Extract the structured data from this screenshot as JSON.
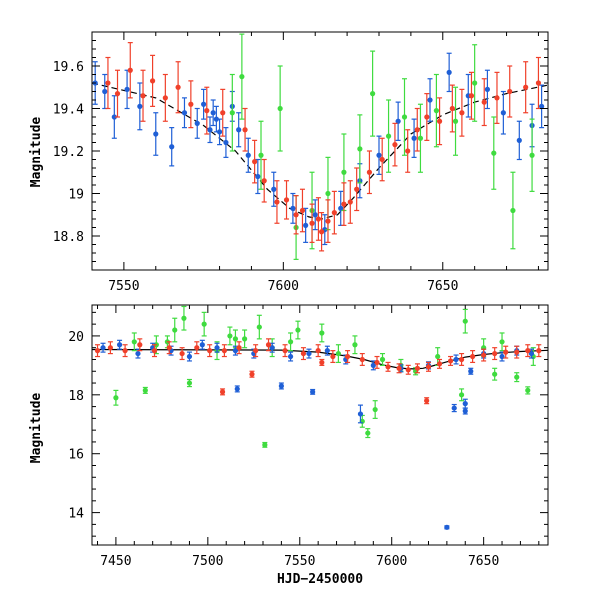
{
  "colors": {
    "blue": "#1f5fd6",
    "red": "#f0402a",
    "green": "#3fdb3f",
    "model": "#000000"
  },
  "chart_data": [
    {
      "type": "scatter",
      "panel": "top",
      "title": "",
      "xlabel": "",
      "ylabel": "Magnitude",
      "xlim": [
        7540,
        7683
      ],
      "ylim": [
        19.76,
        18.64
      ],
      "y_inverted": true,
      "xticks": [
        7550,
        7600,
        7650
      ],
      "xtick_labels": [
        "7550",
        "7600",
        "7650"
      ],
      "yticks": [
        18.8,
        19.0,
        19.2,
        19.4,
        19.6
      ],
      "ytick_labels": [
        "18.8",
        "19",
        "19.2",
        "19.4",
        "19.6"
      ],
      "grid": false,
      "legend": "none",
      "model_curve": {
        "style": "dashed",
        "x": [
          7540,
          7560,
          7575,
          7585,
          7595,
          7602,
          7608,
          7612,
          7617,
          7622,
          7630,
          7640,
          7650,
          7660,
          7670,
          7683
        ],
        "y": [
          19.52,
          19.45,
          19.32,
          19.2,
          19.02,
          18.93,
          18.89,
          18.88,
          18.9,
          18.98,
          19.12,
          19.28,
          19.37,
          19.43,
          19.47,
          19.51
        ]
      },
      "series": [
        {
          "name": "",
          "color": "blue",
          "x": [
            7541,
            7544,
            7547,
            7551,
            7555,
            7560,
            7565,
            7569,
            7573,
            7575,
            7577,
            7578,
            7579,
            7580,
            7582,
            7584,
            7586,
            7589,
            7592,
            7597,
            7603,
            7607,
            7610,
            7613,
            7618,
            7624,
            7630,
            7636,
            7641,
            7646,
            7652,
            7658,
            7664,
            7669,
            7674,
            7678,
            7681
          ],
          "y": [
            19.52,
            19.48,
            19.36,
            19.49,
            19.41,
            19.28,
            19.22,
            19.38,
            19.33,
            19.42,
            19.3,
            19.38,
            19.35,
            19.29,
            19.24,
            19.41,
            19.3,
            19.18,
            19.08,
            19.02,
            18.93,
            18.85,
            18.9,
            18.83,
            18.93,
            19.06,
            19.18,
            19.34,
            19.26,
            19.44,
            19.57,
            19.46,
            19.49,
            19.38,
            19.25,
            19.32,
            19.41
          ],
          "err": [
            0.1,
            0.08,
            0.1,
            0.09,
            0.11,
            0.1,
            0.09,
            0.07,
            0.07,
            0.07,
            0.06,
            0.06,
            0.06,
            0.06,
            0.07,
            0.07,
            0.08,
            0.08,
            0.08,
            0.08,
            0.07,
            0.08,
            0.07,
            0.07,
            0.08,
            0.08,
            0.09,
            0.09,
            0.09,
            0.1,
            0.09,
            0.1,
            0.09,
            0.1,
            0.09,
            0.1,
            0.1
          ]
        },
        {
          "name": "",
          "color": "green",
          "x": [
            7584,
            7587,
            7593,
            7599,
            7604,
            7609,
            7614,
            7619,
            7624,
            7628,
            7633,
            7638,
            7643,
            7648,
            7654,
            7660,
            7666,
            7672,
            7678
          ],
          "y": [
            19.38,
            19.55,
            19.18,
            19.4,
            18.84,
            18.92,
            19.0,
            19.1,
            19.21,
            19.47,
            19.27,
            19.36,
            19.26,
            19.39,
            19.34,
            19.52,
            19.19,
            18.92,
            19.18
          ],
          "err": [
            0.18,
            0.2,
            0.16,
            0.2,
            0.15,
            0.18,
            0.17,
            0.18,
            0.16,
            0.2,
            0.17,
            0.18,
            0.16,
            0.17,
            0.16,
            0.18,
            0.17,
            0.18,
            0.17
          ]
        },
        {
          "name": "",
          "color": "red",
          "x": [
            7545,
            7548,
            7552,
            7556,
            7559,
            7563,
            7567,
            7571,
            7576,
            7581,
            7588,
            7591,
            7594,
            7598,
            7601,
            7604,
            7606,
            7609,
            7611,
            7612,
            7614,
            7616,
            7619,
            7621,
            7623,
            7627,
            7631,
            7635,
            7639,
            7642,
            7645,
            7649,
            7653,
            7656,
            7659,
            7663,
            7667,
            7671,
            7676,
            7680
          ],
          "y": [
            19.52,
            19.47,
            19.58,
            19.46,
            19.53,
            19.45,
            19.5,
            19.42,
            19.39,
            19.38,
            19.3,
            19.15,
            19.06,
            18.96,
            18.97,
            18.9,
            18.92,
            18.86,
            18.88,
            18.82,
            18.87,
            18.91,
            18.95,
            18.96,
            19.02,
            19.1,
            19.16,
            19.23,
            19.2,
            19.3,
            19.36,
            19.34,
            19.4,
            19.38,
            19.46,
            19.43,
            19.45,
            19.48,
            19.5,
            19.52
          ],
          "err": [
            0.12,
            0.11,
            0.13,
            0.12,
            0.12,
            0.11,
            0.12,
            0.11,
            0.11,
            0.11,
            0.1,
            0.1,
            0.1,
            0.1,
            0.09,
            0.09,
            0.1,
            0.09,
            0.1,
            0.09,
            0.1,
            0.1,
            0.1,
            0.1,
            0.1,
            0.1,
            0.1,
            0.1,
            0.1,
            0.1,
            0.11,
            0.11,
            0.11,
            0.11,
            0.11,
            0.11,
            0.12,
            0.12,
            0.12,
            0.12
          ]
        }
      ]
    },
    {
      "type": "scatter",
      "panel": "bottom",
      "title": "",
      "xlabel": "HJD−2450000",
      "ylabel": "Magnitude",
      "xlim": [
        7437,
        7685
      ],
      "ylim": [
        21.05,
        12.9
      ],
      "y_inverted": true,
      "xticks": [
        7450,
        7500,
        7550,
        7600,
        7650
      ],
      "xtick_labels": [
        "7450",
        "7500",
        "7550",
        "7600",
        "7650"
      ],
      "yticks": [
        14,
        16,
        18,
        20
      ],
      "ytick_labels": [
        "14",
        "16",
        "18",
        "20"
      ],
      "grid": false,
      "legend": "none",
      "model_curve": {
        "style": "solid",
        "x": [
          7437,
          7540,
          7560,
          7575,
          7585,
          7595,
          7602,
          7608,
          7612,
          7617,
          7622,
          7630,
          7640,
          7650,
          7660,
          7670,
          7685
        ],
        "y": [
          19.54,
          19.52,
          19.45,
          19.32,
          19.2,
          19.02,
          18.93,
          18.89,
          18.88,
          18.9,
          18.98,
          19.12,
          19.28,
          19.37,
          19.43,
          19.47,
          19.51
        ]
      },
      "series": [
        {
          "name": "",
          "color": "green",
          "x": [
            7450,
            7466,
            7478,
            7490,
            7531,
            7584,
            7587,
            7591,
            7613,
            7638,
            7656,
            7668,
            7674,
            7460,
            7482,
            7498,
            7505,
            7512,
            7520,
            7528,
            7535,
            7545,
            7562,
            7571,
            7580,
            7595,
            7605,
            7625,
            7640,
            7650,
            7660,
            7677,
            7472,
            7487,
            7515,
            7549
          ],
          "y": [
            17.9,
            18.15,
            19.8,
            18.4,
            16.3,
            17.1,
            16.7,
            17.5,
            18.8,
            18.0,
            18.7,
            18.6,
            18.15,
            19.8,
            20.2,
            20.4,
            19.5,
            20.0,
            19.9,
            20.3,
            19.6,
            19.8,
            20.1,
            19.4,
            19.7,
            19.2,
            19.0,
            19.3,
            20.5,
            19.6,
            19.8,
            19.3,
            19.7,
            20.6,
            19.9,
            20.2
          ],
          "err": [
            0.25,
            0.1,
            0.2,
            0.12,
            0.08,
            0.2,
            0.15,
            0.3,
            0.12,
            0.2,
            0.2,
            0.15,
            0.12,
            0.3,
            0.4,
            0.4,
            0.3,
            0.3,
            0.3,
            0.4,
            0.3,
            0.3,
            0.3,
            0.3,
            0.3,
            0.2,
            0.2,
            0.3,
            0.4,
            0.3,
            0.3,
            0.3,
            0.3,
            0.4,
            0.3,
            0.3
          ]
        },
        {
          "name": "",
          "color": "blue",
          "x": [
            7630,
            7634,
            7640,
            7640,
            7583,
            7557,
            7516,
            7540,
            7643,
            7443,
            7452,
            7462,
            7470,
            7480,
            7490,
            7497,
            7505,
            7515,
            7525,
            7535,
            7545,
            7555,
            7565,
            7575,
            7590,
            7605,
            7620,
            7635,
            7650,
            7660,
            7668,
            7676
          ],
          "y": [
            13.5,
            17.55,
            17.45,
            17.7,
            17.35,
            18.1,
            18.2,
            18.3,
            18.8,
            19.6,
            19.7,
            19.4,
            19.6,
            19.5,
            19.3,
            19.7,
            19.6,
            19.5,
            19.4,
            19.6,
            19.3,
            19.4,
            19.5,
            19.2,
            19.0,
            18.9,
            19.0,
            19.2,
            19.4,
            19.3,
            19.5,
            19.4
          ],
          "err": [
            0.05,
            0.12,
            0.1,
            0.15,
            0.3,
            0.08,
            0.1,
            0.1,
            0.1,
            0.15,
            0.15,
            0.15,
            0.15,
            0.15,
            0.15,
            0.15,
            0.15,
            0.15,
            0.15,
            0.15,
            0.15,
            0.15,
            0.15,
            0.15,
            0.15,
            0.12,
            0.12,
            0.15,
            0.15,
            0.15,
            0.15,
            0.15
          ]
        },
        {
          "name": "",
          "color": "red",
          "x": [
            7508,
            7524,
            7619,
            7562,
            7440,
            7447,
            7455,
            7463,
            7471,
            7479,
            7486,
            7494,
            7501,
            7509,
            7517,
            7526,
            7533,
            7542,
            7552,
            7560,
            7568,
            7576,
            7584,
            7592,
            7598,
            7604,
            7609,
            7614,
            7620,
            7626,
            7632,
            7638,
            7644,
            7650,
            7656,
            7662,
            7668,
            7674,
            7680
          ],
          "y": [
            18.1,
            18.7,
            17.8,
            19.1,
            19.5,
            19.6,
            19.5,
            19.7,
            19.5,
            19.6,
            19.4,
            19.6,
            19.5,
            19.5,
            19.6,
            19.5,
            19.7,
            19.5,
            19.4,
            19.5,
            19.3,
            19.3,
            19.2,
            19.1,
            18.95,
            18.9,
            18.85,
            18.9,
            18.95,
            19.05,
            19.15,
            19.2,
            19.3,
            19.35,
            19.4,
            19.45,
            19.45,
            19.5,
            19.5
          ],
          "err": [
            0.1,
            0.1,
            0.1,
            0.1,
            0.2,
            0.2,
            0.2,
            0.2,
            0.2,
            0.2,
            0.2,
            0.2,
            0.2,
            0.2,
            0.2,
            0.2,
            0.2,
            0.2,
            0.2,
            0.2,
            0.2,
            0.2,
            0.2,
            0.2,
            0.15,
            0.15,
            0.15,
            0.15,
            0.15,
            0.15,
            0.15,
            0.2,
            0.2,
            0.2,
            0.2,
            0.2,
            0.2,
            0.2,
            0.2
          ]
        }
      ]
    }
  ]
}
